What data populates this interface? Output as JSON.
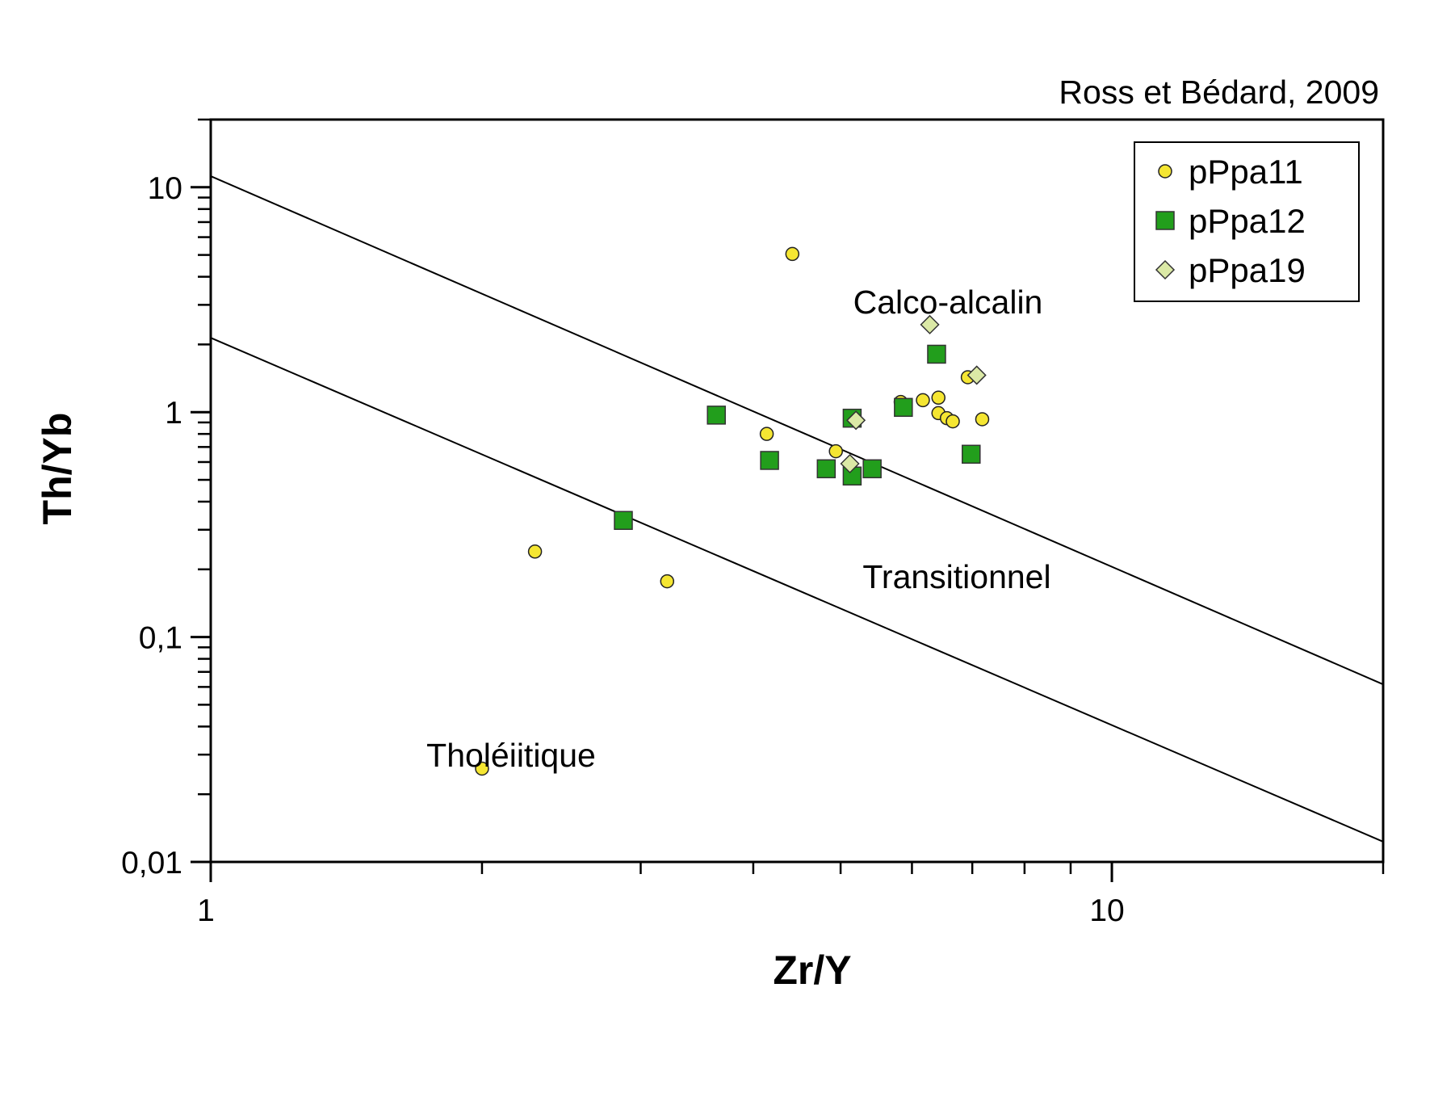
{
  "chart_data": {
    "type": "scatter",
    "title": "",
    "source_note": "Ross et Bédard, 2009",
    "xlabel": "Zr/Y",
    "ylabel": "Th/Yb",
    "xscale": "log",
    "yscale": "log",
    "xlim": [
      1,
      20
    ],
    "ylim": [
      0.01,
      20
    ],
    "x_tick_labels": [
      {
        "value": 1,
        "label": "1"
      },
      {
        "value": 10,
        "label": "10"
      }
    ],
    "y_tick_labels": [
      {
        "value": 10,
        "label": "10"
      },
      {
        "value": 1,
        "label": "1"
      },
      {
        "value": 0.1,
        "label": "0,1"
      },
      {
        "value": 0.01,
        "label": "0,01"
      }
    ],
    "grid": false,
    "legend_position": "top-right",
    "boundary_lines": [
      {
        "name": "calc-alkaline-transitional",
        "points": [
          [
            1,
            11.2
          ],
          [
            20,
            0.0616
          ]
        ]
      },
      {
        "name": "transitional-tholeiitic",
        "points": [
          [
            1,
            2.14
          ],
          [
            20,
            0.0123
          ]
        ]
      }
    ],
    "field_labels": [
      {
        "text": "Calco-alcalin",
        "x": 6.1,
        "y": 3.0
      },
      {
        "text": "Transitionnel",
        "x": 6.3,
        "y": 0.2
      },
      {
        "text": "Tholéiitique",
        "x": 2.7,
        "y": 0.03
      }
    ],
    "series": [
      {
        "name": "pPpa11",
        "marker": "circle",
        "color": "#f5e632",
        "points": [
          [
            4.42,
            5.05
          ],
          [
            4.14,
            0.8
          ],
          [
            4.94,
            0.67
          ],
          [
            2.29,
            0.24
          ],
          [
            3.21,
            0.177
          ],
          [
            2.0,
            0.026
          ],
          [
            5.83,
            1.11
          ],
          [
            6.17,
            1.13
          ],
          [
            6.42,
            1.16
          ],
          [
            6.42,
            0.99
          ],
          [
            6.56,
            0.94
          ],
          [
            6.66,
            0.91
          ],
          [
            6.92,
            1.43
          ],
          [
            7.18,
            0.93
          ]
        ]
      },
      {
        "name": "pPpa12",
        "marker": "square",
        "color": "#229e1c",
        "points": [
          [
            3.64,
            0.97
          ],
          [
            4.17,
            0.61
          ],
          [
            4.82,
            0.56
          ],
          [
            5.15,
            0.94
          ],
          [
            5.15,
            0.52
          ],
          [
            5.42,
            0.56
          ],
          [
            5.87,
            1.05
          ],
          [
            6.39,
            1.81
          ],
          [
            6.98,
            0.65
          ],
          [
            2.87,
            0.33
          ]
        ]
      },
      {
        "name": "pPpa19",
        "marker": "diamond",
        "color": "#dbe9a6",
        "points": [
          [
            6.28,
            2.45
          ],
          [
            5.2,
            0.92
          ],
          [
            5.12,
            0.59
          ],
          [
            7.08,
            1.46
          ]
        ]
      }
    ]
  }
}
